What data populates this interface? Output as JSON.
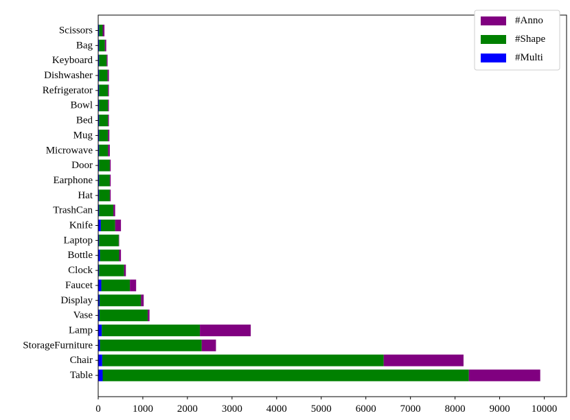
{
  "chart_data": {
    "type": "bar",
    "orientation": "horizontal",
    "stacked": true,
    "categories": [
      "Table",
      "Chair",
      "StorageFurniture",
      "Lamp",
      "Vase",
      "Display",
      "Faucet",
      "Clock",
      "Bottle",
      "Laptop",
      "Knife",
      "TrashCan",
      "Hat",
      "Earphone",
      "Door",
      "Microwave",
      "Mug",
      "Bed",
      "Bowl",
      "Refrigerator",
      "Dishwasher",
      "Keyboard",
      "Bag",
      "Scissors"
    ],
    "series": [
      {
        "name": "#Multi",
        "color": "#0000ff",
        "values": [
          100,
          90,
          40,
          80,
          30,
          30,
          70,
          20,
          40,
          20,
          60,
          20,
          20,
          20,
          20,
          20,
          20,
          20,
          20,
          20,
          20,
          20,
          20,
          20
        ]
      },
      {
        "name": "#Shape",
        "color": "#008000",
        "values": [
          8210,
          6310,
          2280,
          2200,
          1080,
          930,
          640,
          560,
          430,
          440,
          320,
          320,
          240,
          240,
          240,
          200,
          200,
          200,
          200,
          200,
          190,
          170,
          130,
          80
        ]
      },
      {
        "name": "#Anno",
        "color": "#800080",
        "values": [
          1600,
          1790,
          320,
          1140,
          40,
          60,
          140,
          40,
          40,
          10,
          130,
          40,
          20,
          20,
          20,
          40,
          30,
          20,
          20,
          20,
          30,
          20,
          30,
          40
        ]
      }
    ],
    "xticks": [
      0,
      1000,
      2000,
      3000,
      4000,
      5000,
      6000,
      7000,
      8000,
      9000,
      10000
    ],
    "xlim": [
      0,
      10500
    ],
    "legend_position": "top-right",
    "grid": false
  }
}
